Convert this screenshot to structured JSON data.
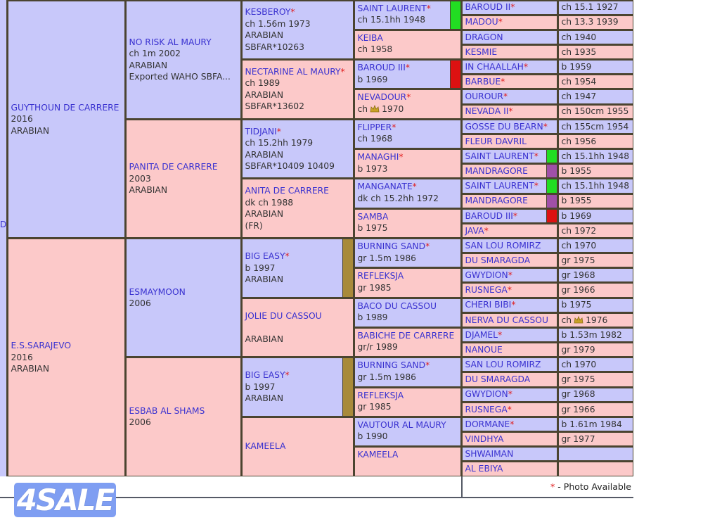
{
  "colors": {
    "sire_bg": "#c8c8fa",
    "dam_bg": "#fcc9c9",
    "border": "#4b4430",
    "name_link": "#3a32d0",
    "star": "#e01b1b",
    "marker_green": "#22dd22",
    "marker_red": "#dd1111",
    "marker_purple": "#a050a8",
    "marker_gold": "#a88a3a"
  },
  "edge_label": "D",
  "pedigree": {
    "gen1": [
      {
        "name": "GUYTHOUN DE CARRERE",
        "star": false,
        "lines": [
          "2016",
          "ARABIAN"
        ]
      },
      {
        "name": "E.S.SARAJEVO",
        "star": false,
        "lines": [
          "2016",
          "ARABIAN"
        ]
      }
    ],
    "gen2": [
      {
        "name": "NO RISK AL MAURY",
        "star": false,
        "lines": [
          "ch 1m 2002",
          "ARABIAN",
          "Exported WAHO SBFA..."
        ]
      },
      {
        "name": "PANITA DE CARRERE",
        "star": false,
        "lines": [
          "2003",
          "ARABIAN"
        ]
      },
      {
        "name": "ESMAYMOON",
        "star": false,
        "lines": [
          "2006"
        ]
      },
      {
        "name": "ESBAB AL SHAMS",
        "star": false,
        "lines": [
          "2006"
        ]
      }
    ],
    "gen3": [
      {
        "name": "KESBEROY",
        "star": true,
        "lines": [
          "ch 1.56m 1973",
          "ARABIAN",
          "SBFAR*10263"
        ]
      },
      {
        "name": "NECTARINE AL MAURY",
        "star": true,
        "lines": [
          "ch 1989",
          "ARABIAN",
          "SBFAR*13602"
        ]
      },
      {
        "name": "TIDJANI",
        "star": true,
        "lines": [
          "ch 15.2hh 1979",
          "ARABIAN",
          "SBFAR*10409 10409"
        ]
      },
      {
        "name": "ANITA DE CARRERE",
        "star": false,
        "lines": [
          "dk ch 1988",
          "ARABIAN",
          "(FR)"
        ]
      },
      {
        "name": "BIG EASY",
        "star": true,
        "lines": [
          "b 1997",
          "ARABIAN"
        ],
        "marker": "#a88a3a"
      },
      {
        "name": "JOLIE DU CASSOU",
        "star": false,
        "lines": [
          "",
          "ARABIAN"
        ]
      },
      {
        "name": "BIG EASY",
        "star": true,
        "lines": [
          "b 1997",
          "ARABIAN"
        ],
        "marker": "#a88a3a"
      },
      {
        "name": "KAMEELA",
        "star": false,
        "lines": []
      }
    ],
    "gen4": [
      {
        "name": "SAINT LAURENT",
        "star": true,
        "lines": [
          "ch 15.1hh 1948"
        ],
        "marker": "#22dd22"
      },
      {
        "name": "KEIBA",
        "star": false,
        "lines": [
          "ch 1958"
        ]
      },
      {
        "name": "BAROUD III",
        "star": true,
        "lines": [
          "b 1969"
        ],
        "marker": "#dd1111"
      },
      {
        "name": "NEVADOUR",
        "star": true,
        "lines": [],
        "crown": {
          "before": "ch",
          "icon": "crown-icon",
          "after": "1970"
        }
      },
      {
        "name": "FLIPPER",
        "star": true,
        "lines": [
          "ch 1968"
        ]
      },
      {
        "name": "MANAGHI",
        "star": true,
        "lines": [
          "b 1973"
        ]
      },
      {
        "name": "MANGANATE",
        "star": true,
        "lines": [
          "dk ch 15.2hh 1972"
        ]
      },
      {
        "name": "SAMBA",
        "star": false,
        "lines": [
          "b 1975"
        ]
      },
      {
        "name": "BURNING SAND",
        "star": true,
        "lines": [
          "gr 1.5m 1986"
        ]
      },
      {
        "name": "REFLEKSJA",
        "star": false,
        "lines": [
          "gr 1985"
        ]
      },
      {
        "name": "BACO DU CASSOU",
        "star": false,
        "lines": [
          "b 1989"
        ]
      },
      {
        "name": "BABICHE DE CARRERE",
        "star": false,
        "lines": [
          "gr/r 1989"
        ]
      },
      {
        "name": "BURNING SAND",
        "star": true,
        "lines": [
          "gr 1.5m 1986"
        ]
      },
      {
        "name": "REFLEKSJA",
        "star": false,
        "lines": [
          "gr 1985"
        ]
      },
      {
        "name": "VAUTOUR AL MAURY",
        "star": false,
        "lines": [
          "b 1990"
        ]
      },
      {
        "name": "KAMEELA",
        "star": false,
        "lines": []
      }
    ],
    "gen5": [
      {
        "name": "BAROUD II",
        "star": true,
        "detail": "ch 15.1 1927"
      },
      {
        "name": "MADOU",
        "star": true,
        "detail": "ch 13.3 1939"
      },
      {
        "name": "DRAGON",
        "star": false,
        "detail": "ch 1940"
      },
      {
        "name": "KESMIE",
        "star": false,
        "detail": "ch 1935"
      },
      {
        "name": "IN CHAALLAH",
        "star": true,
        "detail": "b 1959"
      },
      {
        "name": "BARBUE",
        "star": true,
        "detail": "ch 1954"
      },
      {
        "name": "OUROUR",
        "star": true,
        "detail": "ch 1947"
      },
      {
        "name": "NEVADA II",
        "star": true,
        "detail": "ch 150cm 1955"
      },
      {
        "name": "GOSSE DU BEARN",
        "star": true,
        "detail": "ch 155cm 1954"
      },
      {
        "name": "FLEUR DAVRIL",
        "star": false,
        "detail": "ch 1956"
      },
      {
        "name": "SAINT LAURENT",
        "star": true,
        "detail": "ch 15.1hh 1948",
        "marker": "#22dd22"
      },
      {
        "name": "MANDRAGORE",
        "star": false,
        "detail": "b 1955",
        "marker": "#a050a8"
      },
      {
        "name": "SAINT LAURENT",
        "star": true,
        "detail": "ch 15.1hh 1948",
        "marker": "#22dd22"
      },
      {
        "name": "MANDRAGORE",
        "star": false,
        "detail": "b 1955",
        "marker": "#a050a8"
      },
      {
        "name": "BAROUD III",
        "star": true,
        "detail": "b 1969",
        "marker": "#dd1111"
      },
      {
        "name": "JAVA",
        "star": true,
        "detail": "ch 1972"
      },
      {
        "name": "SAN LOU ROMIRZ",
        "star": false,
        "detail": "ch 1970"
      },
      {
        "name": "DU SMARAGDA",
        "star": false,
        "detail": "gr 1975"
      },
      {
        "name": "GWYDION",
        "star": true,
        "detail": "gr 1968"
      },
      {
        "name": "RUSNEGA",
        "star": true,
        "detail": "gr 1966"
      },
      {
        "name": "CHERI BIBI",
        "star": true,
        "detail": "b 1975"
      },
      {
        "name": "NERVA DU CASSOU",
        "star": false,
        "detail": "",
        "crown": {
          "before": "ch",
          "icon": "crown-icon",
          "after": "1976"
        }
      },
      {
        "name": "DJAMEL",
        "star": true,
        "detail": "b 1.53m 1982"
      },
      {
        "name": "NANOUE",
        "star": false,
        "detail": "gr 1979"
      },
      {
        "name": "SAN LOU ROMIRZ",
        "star": false,
        "detail": "ch 1970"
      },
      {
        "name": "DU SMARAGDA",
        "star": false,
        "detail": "gr 1975"
      },
      {
        "name": "GWYDION",
        "star": true,
        "detail": "gr 1968"
      },
      {
        "name": "RUSNEGA",
        "star": true,
        "detail": "gr 1966"
      },
      {
        "name": "DORMANE",
        "star": true,
        "detail": "b 1.61m 1984"
      },
      {
        "name": "VINDHYA",
        "star": false,
        "detail": "gr 1977"
      },
      {
        "name": "SHWAIMAN",
        "star": false,
        "detail": ""
      },
      {
        "name": "AL EBIYA",
        "star": false,
        "detail": ""
      }
    ],
    "star_symbol": "*"
  },
  "legend": {
    "star": "*",
    "text": "- Photo Available"
  },
  "logo": {
    "text": "4SALE"
  }
}
